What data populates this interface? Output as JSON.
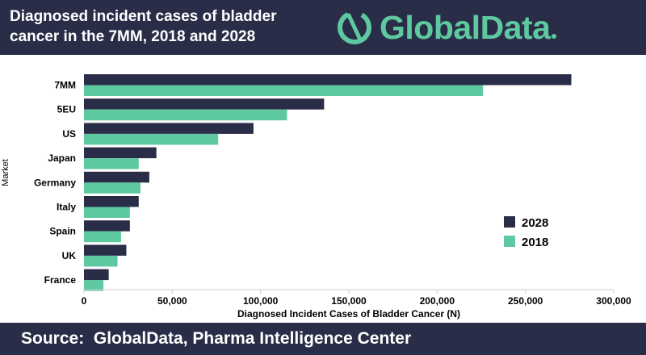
{
  "header": {
    "title": "Diagnosed incident cases of bladder\ncancer in the 7MM, 2018 and 2028",
    "logo_text": "GlobalData",
    "logo_icon": "globaldata-logo-icon"
  },
  "footer": {
    "source": "Source:  GlobalData, Pharma Intelligence Center"
  },
  "colors": {
    "header_bg": "#2a2d47",
    "series_2028": "#2a2d47",
    "series_2018": "#5ec8a0"
  },
  "chart_data": {
    "type": "bar",
    "orientation": "horizontal",
    "title": "Diagnosed incident cases of bladder cancer in the 7MM, 2018 and 2028",
    "xlabel": "Diagnosed Incident Cases of Bladder Cancer (N)",
    "ylabel": "Market",
    "categories": [
      "7MM",
      "5EU",
      "US",
      "Japan",
      "Germany",
      "Italy",
      "Spain",
      "UK",
      "France"
    ],
    "series": [
      {
        "name": "2028",
        "color": "#2a2d47",
        "values": [
          276000,
          136000,
          96000,
          41000,
          37000,
          31000,
          26000,
          24000,
          14000
        ]
      },
      {
        "name": "2018",
        "color": "#5ec8a0",
        "values": [
          226000,
          115000,
          76000,
          31000,
          32000,
          26000,
          21000,
          19000,
          11000
        ]
      }
    ],
    "xlim": [
      0,
      300000
    ],
    "xticks": [
      0,
      50000,
      100000,
      150000,
      200000,
      250000,
      300000
    ],
    "xtick_labels": [
      "0",
      "50,000",
      "100,000",
      "150,000",
      "200,000",
      "250,000",
      "300,000"
    ],
    "grid": false,
    "legend": {
      "position": "right",
      "entries": [
        "2028",
        "2018"
      ]
    }
  }
}
